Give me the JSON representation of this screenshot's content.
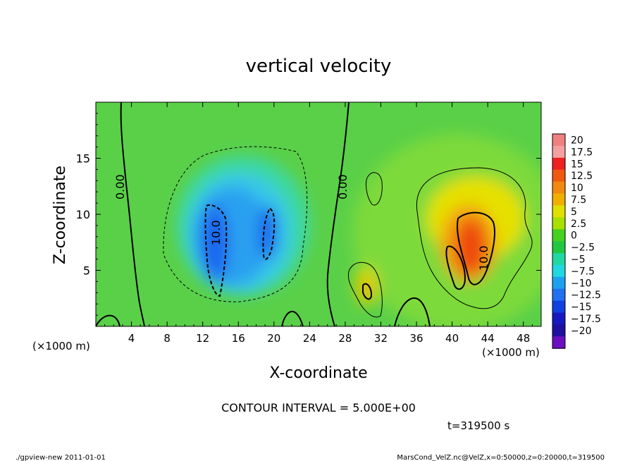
{
  "chart_data": {
    "type": "heatmap",
    "title": "vertical velocity",
    "xlabel": "X-coordinate",
    "ylabel": "Z-coordinate",
    "x_unit_left": "(×1000 m)",
    "x_unit_right": "(×1000 m)",
    "xlim": [
      0,
      50
    ],
    "ylim": [
      0,
      20
    ],
    "x_ticks": [
      "4",
      "8",
      "12",
      "16",
      "20",
      "24",
      "28",
      "32",
      "36",
      "40",
      "44",
      "48"
    ],
    "y_ticks": [
      "5",
      "10",
      "15"
    ],
    "colorbar_labels": [
      "20",
      "17.5",
      "15",
      "12.5",
      "10",
      "7.5",
      "5",
      "2.5",
      "0",
      "−2.5",
      "−5",
      "−7.5",
      "−10",
      "−12.5",
      "−15",
      "−17.5",
      "−20"
    ],
    "colorbar_colors": [
      "#f08080",
      "#f4a0a0",
      "#ee2020",
      "#f05a10",
      "#f08a10",
      "#f0b000",
      "#e0e000",
      "#a8e000",
      "#46d020",
      "#20c840",
      "#20d8a0",
      "#20d8e0",
      "#1ea0f0",
      "#2070f0",
      "#1040e0",
      "#1818c0",
      "#2010a0",
      "#6a10c0"
    ],
    "background_value": 0,
    "contour_interval": "CONTOUR INTERVAL = 5.000E+00",
    "contour_labels": [
      "0.00",
      "0.00",
      "10.0",
      "10.0"
    ],
    "features": [
      {
        "name": "downdraft",
        "x": 17,
        "z": 8.5,
        "value": -12.5
      },
      {
        "name": "updraft",
        "x": 42,
        "z": 7.5,
        "value": 15
      },
      {
        "name": "updraft-small",
        "x": 30.5,
        "z": 3.5,
        "value": 10
      }
    ],
    "time_label": "t=319500 s"
  },
  "footer": {
    "left": "./gpview-new  2011-01-01",
    "right": "MarsCond_VelZ.nc@VelZ,x=0:50000,z=0:20000,t=319500"
  }
}
